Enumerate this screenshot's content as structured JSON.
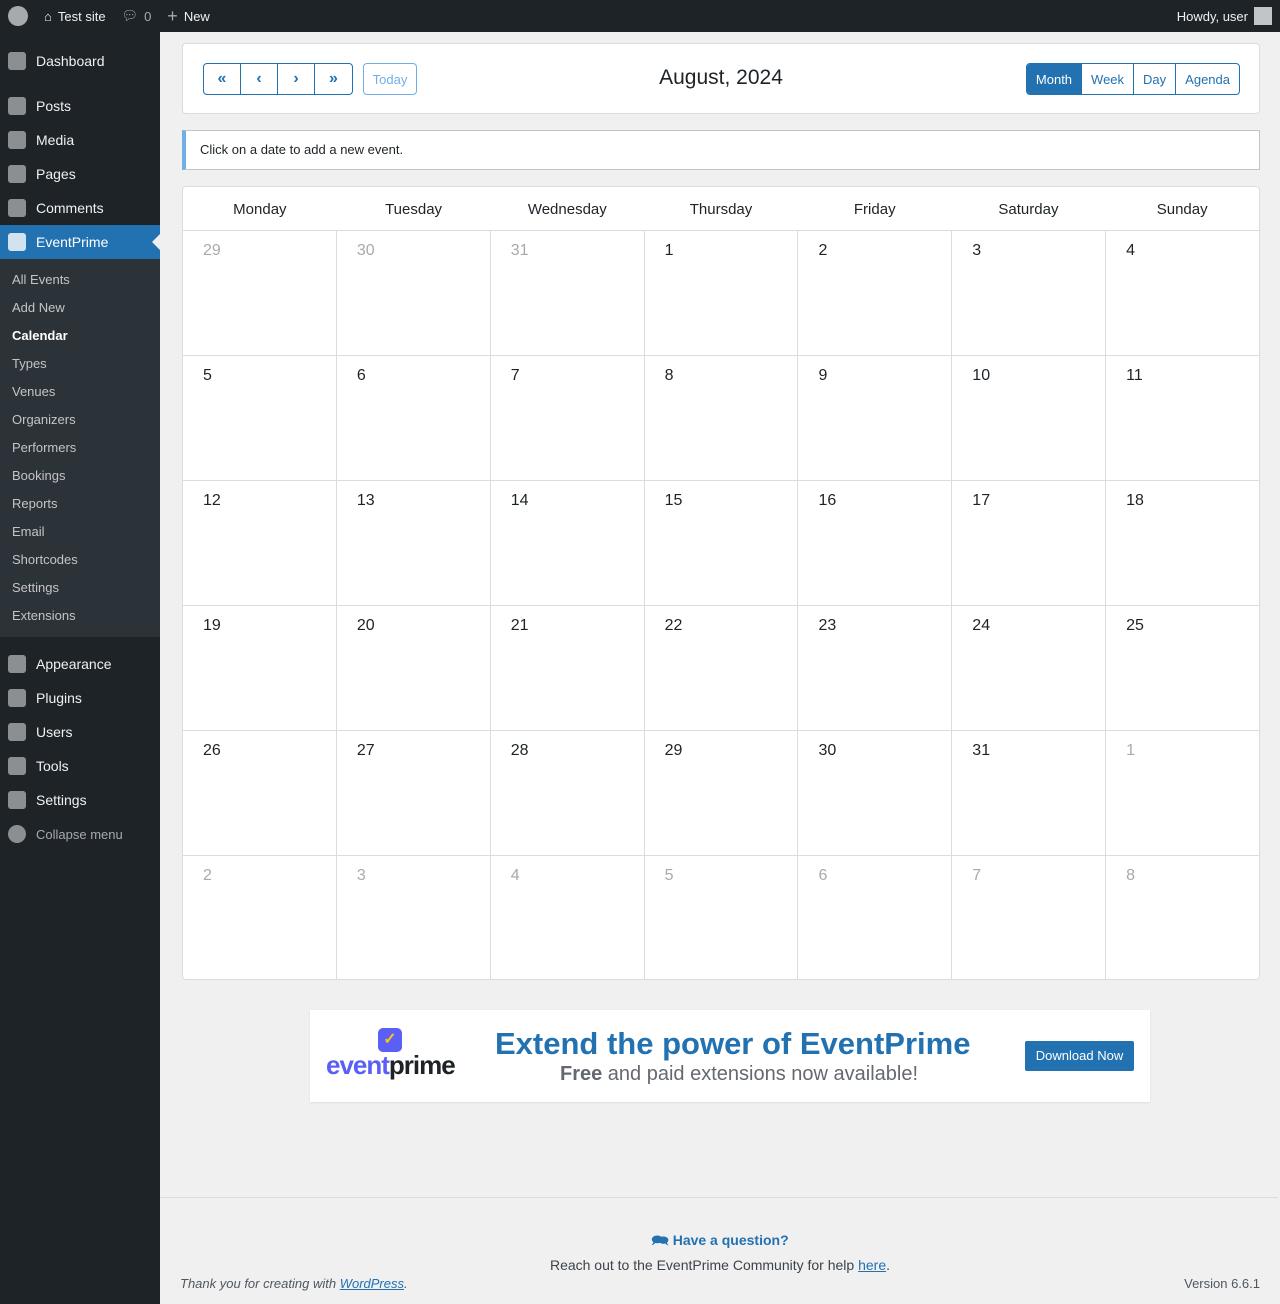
{
  "adminbar": {
    "site": "Test site",
    "comments": "0",
    "new": "New",
    "howdy": "Howdy, user"
  },
  "sidebar": {
    "top": [
      "Dashboard",
      "Posts",
      "Media",
      "Pages",
      "Comments"
    ],
    "active": "EventPrime",
    "sub": [
      "All Events",
      "Add New",
      "Calendar",
      "Types",
      "Venues",
      "Organizers",
      "Performers",
      "Bookings",
      "Reports",
      "Email",
      "Shortcodes",
      "Settings",
      "Extensions"
    ],
    "bottom": [
      "Appearance",
      "Plugins",
      "Users",
      "Tools",
      "Settings"
    ],
    "collapse": "Collapse menu"
  },
  "toolbar": {
    "first": "«",
    "prev": "‹",
    "next": "›",
    "last": "»",
    "today": "Today",
    "title": "August, 2024",
    "views": [
      "Month",
      "Week",
      "Day",
      "Agenda"
    ],
    "active_view": "Month"
  },
  "notice": "Click on a date to add a new event.",
  "calendar": {
    "days": [
      "Monday",
      "Tuesday",
      "Wednesday",
      "Thursday",
      "Friday",
      "Saturday",
      "Sunday"
    ],
    "weeks": [
      [
        "29",
        "30",
        "31",
        "1",
        "2",
        "3",
        "4"
      ],
      [
        "5",
        "6",
        "7",
        "8",
        "9",
        "10",
        "11"
      ],
      [
        "12",
        "13",
        "14",
        "15",
        "16",
        "17",
        "18"
      ],
      [
        "19",
        "20",
        "21",
        "22",
        "23",
        "24",
        "25"
      ],
      [
        "26",
        "27",
        "28",
        "29",
        "30",
        "31",
        "1"
      ],
      [
        "2",
        "3",
        "4",
        "5",
        "6",
        "7",
        "8"
      ]
    ],
    "other_month": [
      [
        true,
        true,
        true,
        false,
        false,
        false,
        false
      ],
      [
        false,
        false,
        false,
        false,
        false,
        false,
        false
      ],
      [
        false,
        false,
        false,
        false,
        false,
        false,
        false
      ],
      [
        false,
        false,
        false,
        false,
        false,
        false,
        false
      ],
      [
        false,
        false,
        false,
        false,
        false,
        false,
        true
      ],
      [
        true,
        true,
        true,
        true,
        true,
        true,
        true
      ]
    ]
  },
  "banner": {
    "logo": "eventprime",
    "title": "Extend the power of EventPrime",
    "sub_bold": "Free",
    "sub_rest": " and paid extensions now available!",
    "button": "Download Now"
  },
  "footer": {
    "question": "Have a question?",
    "reach": "Reach out to the EventPrime Community for help ",
    "here": "here",
    "thanks": "Thank you for creating with ",
    "wp": "WordPress",
    "version": "Version 6.6.1"
  }
}
